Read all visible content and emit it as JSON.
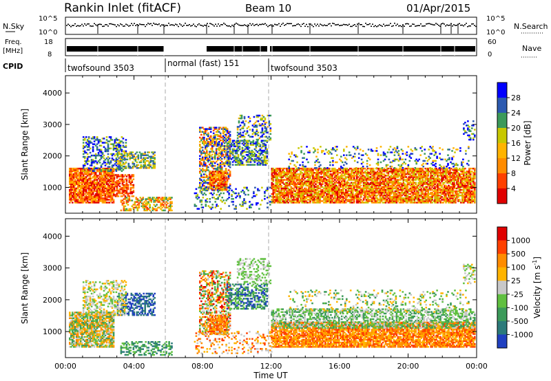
{
  "header": {
    "title": "Rankin Inlet (fitACF)",
    "beam": "Beam 10",
    "date": "01/Apr/2015"
  },
  "strips": {
    "nsky_label": "N.Sky",
    "nsky_ticks": [
      "10^5",
      "10^0"
    ],
    "nsearch_label": "N.Search",
    "nsearch_ticks": [
      "10^5",
      "10^0"
    ],
    "freq_label": "Freq.",
    "freq_unit": "[MHz]",
    "freq_ticks": [
      "18",
      "8"
    ],
    "nave_label": "Nave",
    "nave_ticks": [
      "60",
      "0"
    ],
    "cpid_label": "CPID",
    "cpid_segments": [
      {
        "start": 0.0,
        "end": 6.0,
        "label": "twofsound 3503"
      },
      {
        "start": 6.0,
        "end": 12.0,
        "label": "normal (fast) 151"
      },
      {
        "start": 12.0,
        "end": 24.0,
        "label": "twofsound 3503"
      }
    ]
  },
  "chart_data": [
    {
      "type": "heatmap",
      "name": "power-panel",
      "ylabel": "Slant Range [km]",
      "xlim": [
        0,
        24
      ],
      "ylim": [
        180,
        4550
      ],
      "yticks": [
        "1000",
        "2000",
        "3000",
        "4000"
      ],
      "colorbar": {
        "label": "Power [dB]",
        "ticks": [
          "28",
          "24",
          "20",
          "16",
          "12",
          "8",
          "4"
        ],
        "colors": [
          "#e00000",
          "#ff4000",
          "#ff8c00",
          "#ffb400",
          "#c8c800",
          "#3c9a5a",
          "#2c5ab0",
          "#0000ff"
        ]
      }
    },
    {
      "type": "heatmap",
      "name": "velocity-panel",
      "ylabel": "Slant Range [km]",
      "xlabel": "Time UT",
      "xlim": [
        0,
        24
      ],
      "ylim": [
        180,
        4550
      ],
      "yticks": [
        "1000",
        "2000",
        "3000",
        "4000"
      ],
      "xticks": [
        "00:00",
        "04:00",
        "08:00",
        "12:00",
        "16:00",
        "20:00",
        "00:00"
      ],
      "colorbar": {
        "label": "Velocity [m s",
        "label_sup": "-1",
        "label_tail": "]",
        "ticks": [
          "1000",
          "500",
          "100",
          "25",
          "-25",
          "-100",
          "-500",
          "-1000"
        ],
        "colors": [
          "#2040c0",
          "#2c7a7a",
          "#3c9a5a",
          "#60c040",
          "#c8c8c8",
          "#ffb400",
          "#ff8c00",
          "#ff4000",
          "#e00000"
        ]
      }
    }
  ]
}
